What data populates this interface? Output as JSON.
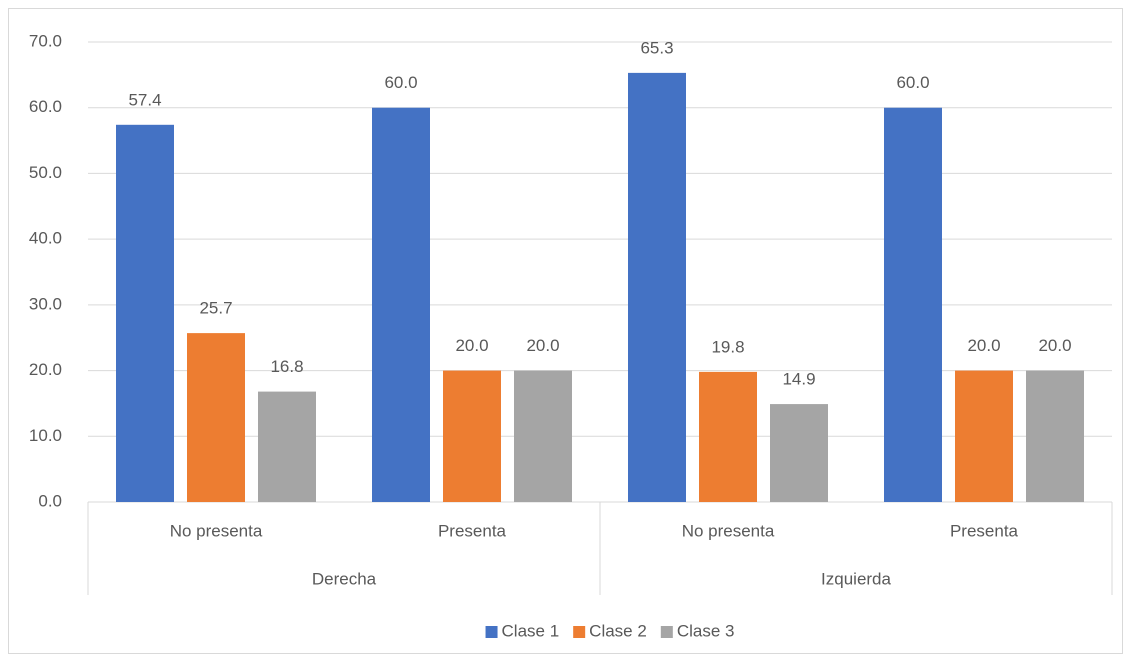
{
  "chart_data": {
    "type": "bar",
    "groups": [
      {
        "label": "Derecha",
        "categories": [
          "No presenta",
          "Presenta"
        ]
      },
      {
        "label": "Izquierda",
        "categories": [
          "No presenta",
          "Presenta"
        ]
      }
    ],
    "series": [
      {
        "name": "Clase 1",
        "color": "#4472c4",
        "values": [
          57.4,
          60,
          65.3,
          60
        ],
        "value_labels": [
          "57.4",
          "60.0",
          "65.3",
          "60.0"
        ]
      },
      {
        "name": "Clase 2",
        "color": "#ed7d31",
        "values": [
          25.7,
          20,
          19.8,
          20
        ],
        "value_labels": [
          "25.7",
          "20.0",
          "19.8",
          "20.0"
        ]
      },
      {
        "name": "Clase 3",
        "color": "#a5a5a5",
        "values": [
          16.8,
          20,
          14.9,
          20
        ],
        "value_labels": [
          "16.8",
          "20.0",
          "14.9",
          "20.0"
        ]
      }
    ],
    "ylim": [
      0,
      70
    ],
    "yticks": [
      {
        "value": 0,
        "label": "0.0"
      },
      {
        "value": 10,
        "label": "10.0"
      },
      {
        "value": 20,
        "label": "20.0"
      },
      {
        "value": 30,
        "label": "30.0"
      },
      {
        "value": 40,
        "label": "40.0"
      },
      {
        "value": 50,
        "label": "50.0"
      },
      {
        "value": 60,
        "label": "60.0"
      },
      {
        "value": 70,
        "label": "70.0"
      }
    ],
    "grid": true,
    "legend": "bottom"
  }
}
